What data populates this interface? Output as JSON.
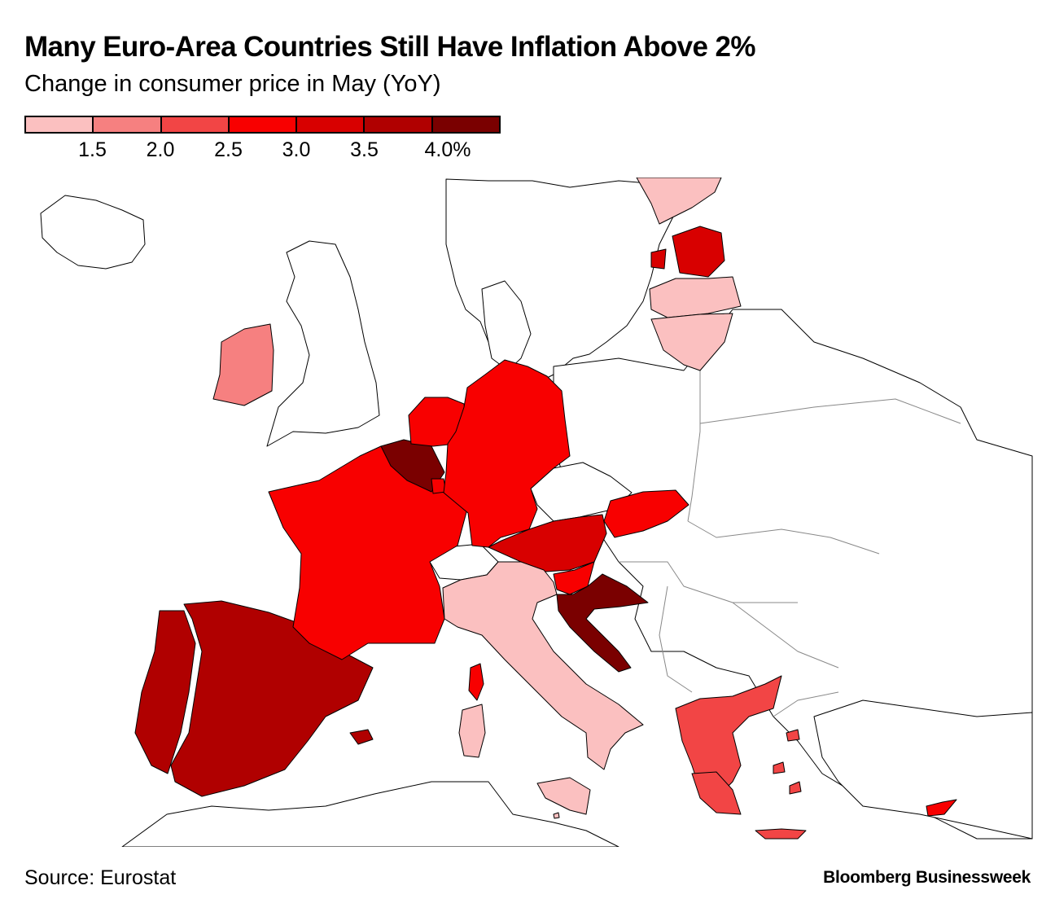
{
  "title": "Many Euro-Area Countries Still Have Inflation Above 2%",
  "subtitle": "Change in consumer price in May (YoY)",
  "legend": {
    "bins": [
      {
        "label": "",
        "color": "#fbc0c0"
      },
      {
        "label": "1.5",
        "color": "#f68080"
      },
      {
        "label": "2.0",
        "color": "#f24545"
      },
      {
        "label": "2.5",
        "color": "#f80000"
      },
      {
        "label": "3.0",
        "color": "#d80000"
      },
      {
        "label": "3.5",
        "color": "#b00000"
      },
      {
        "label": "4.0%",
        "color": "#7a0000"
      }
    ]
  },
  "regions": [
    {
      "name": "Spain",
      "bin": 5
    },
    {
      "name": "Portugal",
      "bin": 5
    },
    {
      "name": "France",
      "bin": 3
    },
    {
      "name": "Belgium",
      "bin": 6
    },
    {
      "name": "Luxembourg",
      "bin": 3
    },
    {
      "name": "Netherlands",
      "bin": 3
    },
    {
      "name": "Germany",
      "bin": 3
    },
    {
      "name": "Austria",
      "bin": 4
    },
    {
      "name": "Slovakia",
      "bin": 3
    },
    {
      "name": "Slovenia",
      "bin": 3
    },
    {
      "name": "Croatia",
      "bin": 6
    },
    {
      "name": "Italy",
      "bin": 0
    },
    {
      "name": "Ireland",
      "bin": 1
    },
    {
      "name": "Estonia",
      "bin": 4
    },
    {
      "name": "Latvia",
      "bin": 0
    },
    {
      "name": "Lithuania",
      "bin": 0
    },
    {
      "name": "Finland",
      "bin": 0
    },
    {
      "name": "Greece",
      "bin": 2
    },
    {
      "name": "Cyprus",
      "bin": 3
    },
    {
      "name": "Malta",
      "bin": 0
    }
  ],
  "footer": {
    "source": "Source: Eurostat",
    "brand": "Bloomberg Businessweek"
  }
}
